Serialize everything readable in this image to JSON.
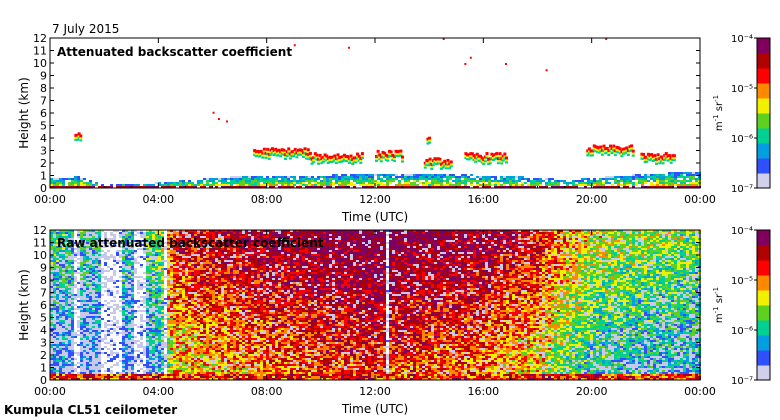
{
  "header": {
    "date": "7 July 2015"
  },
  "footer": {
    "instrument": "Kumpula CL51 ceilometer"
  },
  "colors": {
    "scale": [
      "#d0d0ee",
      "#3050ff",
      "#00a0e0",
      "#00d090",
      "#60d020",
      "#f0f000",
      "#ff8800",
      "#ff0000",
      "#b00000",
      "#800060"
    ],
    "background": "#ffffff",
    "noise": "#c8c8e8"
  },
  "chart_data": [
    {
      "type": "heatmap",
      "title": "Attenuated backscatter coefficient",
      "xlabel": "Time (UTC)",
      "ylabel": "Height (km)",
      "x_ticks": [
        "00:00",
        "04:00",
        "08:00",
        "12:00",
        "16:00",
        "20:00",
        "00:00"
      ],
      "xlim_hours": [
        0,
        24
      ],
      "y_ticks": [
        "0",
        "1",
        "2",
        "3",
        "4",
        "5",
        "6",
        "7",
        "8",
        "9",
        "10",
        "11",
        "12"
      ],
      "ylim_km": [
        0,
        12
      ],
      "color_scale": "log",
      "colorbar": {
        "ticks": [
          "10⁻⁷",
          "10⁻⁶",
          "10⁻⁵",
          "10⁻⁴"
        ],
        "range": [
          1e-07,
          0.0001
        ],
        "unit_html": "m<tspan baseline-shift='super' font-size='7'>-1</tspan> sr<tspan baseline-shift='super' font-size='7'>-1</tspan>",
        "unit": "m-1 sr-1"
      },
      "features": {
        "boundary_layer_top_km": [
          [
            0,
            0.8
          ],
          [
            1,
            1.0
          ],
          [
            2,
            0.3
          ],
          [
            4,
            0.5
          ],
          [
            6,
            0.9
          ],
          [
            8,
            1.1
          ],
          [
            10,
            1.1
          ],
          [
            12,
            1.2
          ],
          [
            14,
            1.2
          ],
          [
            16,
            1.1
          ],
          [
            18,
            0.9
          ],
          [
            19,
            0.7
          ],
          [
            20,
            0.9
          ],
          [
            22,
            1.2
          ],
          [
            24,
            1.4
          ]
        ],
        "cloud_layers": [
          {
            "t0": 7.5,
            "t1": 9.5,
            "h": 2.8
          },
          {
            "t0": 9.5,
            "t1": 11.5,
            "h": 2.4
          },
          {
            "t0": 12.0,
            "t1": 13.0,
            "h": 2.6
          },
          {
            "t0": 13.8,
            "t1": 14.8,
            "h": 2.0
          },
          {
            "t0": 15.3,
            "t1": 16.8,
            "h": 2.4
          },
          {
            "t0": 19.8,
            "t1": 21.5,
            "h": 3.0
          },
          {
            "t0": 21.8,
            "t1": 23.0,
            "h": 2.4
          },
          {
            "t0": 0.9,
            "t1": 1.1,
            "h": 4.0
          },
          {
            "t0": 13.9,
            "t1": 14.0,
            "h": 3.8
          }
        ]
      },
      "sparse_dots": [
        [
          6.0,
          6.1
        ],
        [
          6.2,
          5.6
        ],
        [
          11.0,
          11.3
        ],
        [
          14.5,
          12.0
        ],
        [
          15.5,
          10.5
        ],
        [
          15.3,
          10.0
        ],
        [
          16.8,
          10.0
        ],
        [
          18.3,
          9.5
        ],
        [
          9.0,
          11.5
        ],
        [
          20.5,
          12.0
        ],
        [
          6.5,
          5.4
        ]
      ]
    },
    {
      "type": "heatmap",
      "title": "Raw attenuated backscatter coefficient",
      "xlabel": "Time (UTC)",
      "ylabel": "Height (km)",
      "x_ticks": [
        "00:00",
        "04:00",
        "08:00",
        "12:00",
        "16:00",
        "20:00",
        "00:00"
      ],
      "xlim_hours": [
        0,
        24
      ],
      "y_ticks": [
        "0",
        "1",
        "2",
        "3",
        "4",
        "5",
        "6",
        "7",
        "8",
        "9",
        "10",
        "11",
        "12"
      ],
      "ylim_km": [
        0,
        12
      ],
      "color_scale": "log",
      "colorbar": {
        "ticks": [
          "10⁻⁷",
          "10⁻⁶",
          "10⁻⁵",
          "10⁻⁴"
        ],
        "range": [
          1e-07,
          0.0001
        ],
        "unit_html": "m<tspan baseline-shift='super' font-size='7'>-1</tspan> sr<tspan baseline-shift='super' font-size='7'>-1</tspan>",
        "unit": "m-1 sr-1"
      },
      "features": {
        "noise_intensity_by_hour": [
          [
            0,
            0.15
          ],
          [
            1,
            0.1
          ],
          [
            2,
            0.08
          ],
          [
            3,
            0.1
          ],
          [
            4,
            0.2
          ],
          [
            4.5,
            0.55
          ],
          [
            6,
            0.6
          ],
          [
            8,
            0.65
          ],
          [
            10,
            0.7
          ],
          [
            12,
            0.75
          ],
          [
            14,
            0.7
          ],
          [
            16,
            0.65
          ],
          [
            18,
            0.55
          ],
          [
            19,
            0.4
          ],
          [
            20,
            0.3
          ],
          [
            22,
            0.25
          ],
          [
            24,
            0.2
          ]
        ],
        "clear_bands_hours": [
          [
            0.8,
            1.0
          ],
          [
            1.8,
            2.6
          ],
          [
            3.1,
            3.5
          ],
          [
            4.1,
            4.3
          ],
          [
            12.3,
            12.5
          ]
        ]
      }
    }
  ]
}
